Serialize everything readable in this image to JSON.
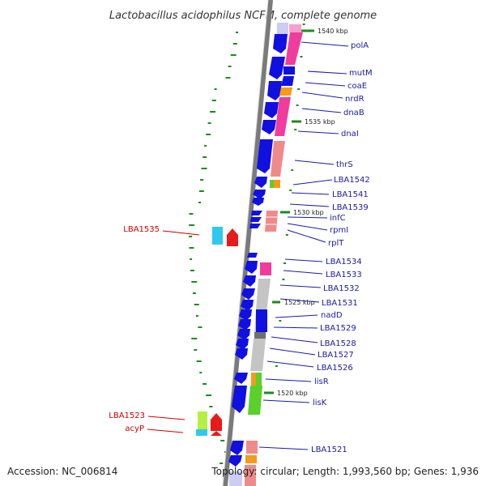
{
  "title": "Lactobacillus acidophilus NCFM, complete genome",
  "accession": "Accession: NC_006814",
  "topology": "Topology: circular; Length: 1,993,560 bp; Genes: 1,936",
  "scale_marks": [
    {
      "label": "1540 kbp"
    },
    {
      "label": "1535 kbp"
    },
    {
      "label": "1530 kbp"
    },
    {
      "label": "1525 kbp"
    },
    {
      "label": "1520 kbp"
    }
  ],
  "genes_right": [
    {
      "label": "polA"
    },
    {
      "label": "mutM"
    },
    {
      "label": "coaE"
    },
    {
      "label": "nrdR"
    },
    {
      "label": "dnaB"
    },
    {
      "label": "dnaI"
    },
    {
      "label": "thrS"
    },
    {
      "label": "LBA1542"
    },
    {
      "label": "LBA1541"
    },
    {
      "label": "LBA1539"
    },
    {
      "label": "infC"
    },
    {
      "label": "rpmI"
    },
    {
      "label": "rplT"
    },
    {
      "label": "LBA1534"
    },
    {
      "label": "LBA1533"
    },
    {
      "label": "LBA1532"
    },
    {
      "label": "LBA1531"
    },
    {
      "label": "nadD"
    },
    {
      "label": "LBA1529"
    },
    {
      "label": "LBA1528"
    },
    {
      "label": "LBA1527"
    },
    {
      "label": "LBA1526"
    },
    {
      "label": "lisR"
    },
    {
      "label": "lisK"
    },
    {
      "label": "LBA1521"
    }
  ],
  "genes_left": [
    {
      "label": "LBA1535"
    },
    {
      "label": "LBA1523"
    },
    {
      "label": "acyP"
    }
  ],
  "colors": {
    "backbone": "#7a7a7a",
    "forward_gene": "#1010e0",
    "magenta": "#f03c9c",
    "salmon": "#f08a8a",
    "orange": "#f59a1a",
    "grey": "#c4c4c4",
    "dark_grey": "#6e6e6e",
    "green": "#5ad02a",
    "lime": "#b4f03c",
    "cyan": "#30c8f0",
    "red": "#e81a1a",
    "gc_tick": "#1f8a1f",
    "label_blue": "#1a1aa6",
    "label_red": "#cc0000"
  }
}
